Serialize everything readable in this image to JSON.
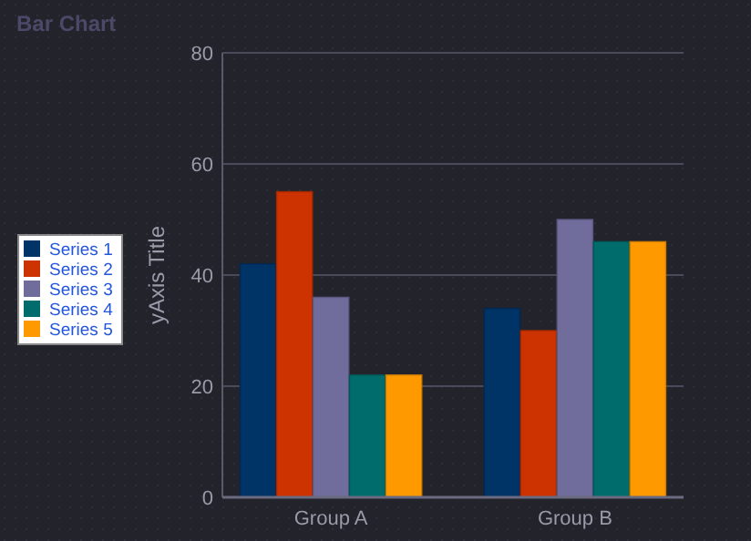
{
  "chart_data": {
    "type": "bar",
    "title": "Bar Chart",
    "ylabel": "yAxis Title",
    "categories": [
      "Group A",
      "Group B"
    ],
    "series": [
      {
        "name": "Series 1",
        "color": "#003366",
        "values": [
          42,
          34
        ]
      },
      {
        "name": "Series 2",
        "color": "#cc3300",
        "values": [
          55,
          30
        ]
      },
      {
        "name": "Series 3",
        "color": "#706c9c",
        "values": [
          36,
          50
        ]
      },
      {
        "name": "Series 4",
        "color": "#006c6c",
        "values": [
          22,
          46
        ]
      },
      {
        "name": "Series 5",
        "color": "#ff9900",
        "values": [
          22,
          46
        ]
      }
    ],
    "ylim": [
      0,
      80
    ],
    "yticks": [
      0,
      20,
      40,
      60,
      80
    ],
    "grid": "y",
    "legend": "left"
  }
}
